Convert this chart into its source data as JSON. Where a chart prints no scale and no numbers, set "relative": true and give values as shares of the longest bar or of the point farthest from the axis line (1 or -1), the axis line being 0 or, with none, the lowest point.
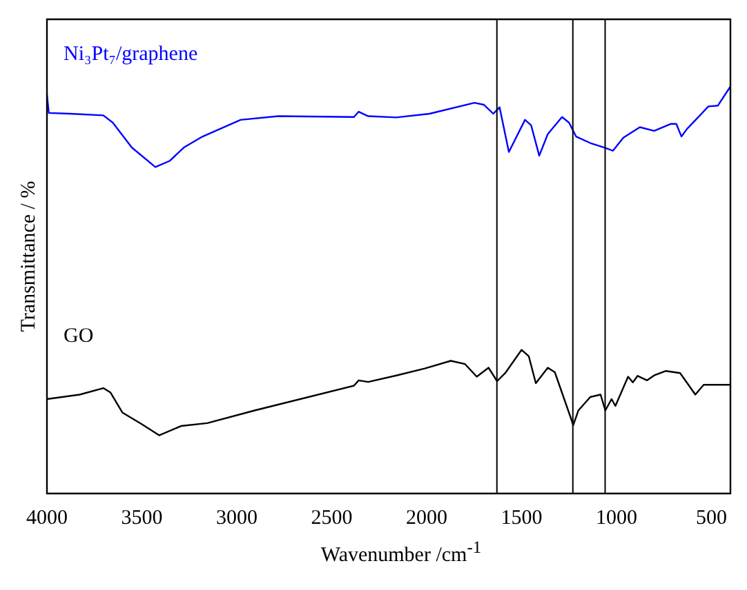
{
  "chart_data": {
    "type": "line",
    "xlabel": "Wavenumber /cm$^{-1}$",
    "ylabel": "Transmittance / %",
    "relative": true,
    "xlim": [
      4000,
      400
    ],
    "xticks": [
      4000,
      3500,
      3000,
      2500,
      2000,
      1500,
      1000,
      500
    ],
    "grid": false,
    "legend": false,
    "marker": "none",
    "line_style": "solid",
    "ref_lines": [
      {
        "axis": "x",
        "value": 1630,
        "color": "#000000"
      },
      {
        "axis": "x",
        "value": 1230,
        "color": "#000000"
      },
      {
        "axis": "x",
        "value": 1060,
        "color": "#000000"
      }
    ],
    "series": [
      {
        "name": "Ni₃Pt₇/graphene",
        "color": "#0000ff",
        "x": [
          4000,
          3990,
          3877,
          3703,
          3653,
          3553,
          3429,
          3354,
          3279,
          3180,
          2980,
          2781,
          2383,
          2358,
          2308,
          2159,
          1985,
          1748,
          1698,
          1649,
          1616,
          1567,
          1482,
          1450,
          1407,
          1362,
          1287,
          1250,
          1213,
          1138,
          1064,
          1019,
          964,
          877,
          802,
          715,
          685,
          658,
          628,
          516,
          466,
          400
        ],
        "values": [
          0.98,
          0.935,
          0.933,
          0.929,
          0.911,
          0.85,
          0.802,
          0.817,
          0.85,
          0.877,
          0.918,
          0.927,
          0.925,
          0.938,
          0.927,
          0.924,
          0.933,
          0.96,
          0.955,
          0.933,
          0.949,
          0.839,
          0.918,
          0.905,
          0.83,
          0.883,
          0.925,
          0.911,
          0.877,
          0.861,
          0.85,
          0.842,
          0.874,
          0.9,
          0.891,
          0.908,
          0.908,
          0.877,
          0.896,
          0.951,
          0.953,
          1
        ]
      },
      {
        "name": "GO",
        "color": "#000000",
        "x": [
          4000,
          3827,
          3703,
          3665,
          3603,
          3503,
          3409,
          3292,
          3155,
          2906,
          2383,
          2358,
          2308,
          2159,
          2010,
          1873,
          1798,
          1736,
          1674,
          1629,
          1586,
          1500,
          1462,
          1425,
          1362,
          1325,
          1238,
          1228,
          1201,
          1138,
          1084,
          1059,
          1026,
          1006,
          939,
          914,
          889,
          839,
          802,
          740,
          665,
          585,
          541,
          400
        ],
        "values": [
          0.232,
          0.243,
          0.259,
          0.248,
          0.199,
          0.171,
          0.143,
          0.166,
          0.173,
          0.204,
          0.265,
          0.278,
          0.274,
          0.29,
          0.307,
          0.326,
          0.318,
          0.287,
          0.309,
          0.276,
          0.296,
          0.353,
          0.337,
          0.271,
          0.309,
          0.298,
          0.182,
          0.168,
          0.204,
          0.237,
          0.243,
          0.204,
          0.232,
          0.215,
          0.287,
          0.273,
          0.289,
          0.278,
          0.29,
          0.301,
          0.296,
          0.243,
          0.267,
          0.267
        ]
      }
    ]
  }
}
